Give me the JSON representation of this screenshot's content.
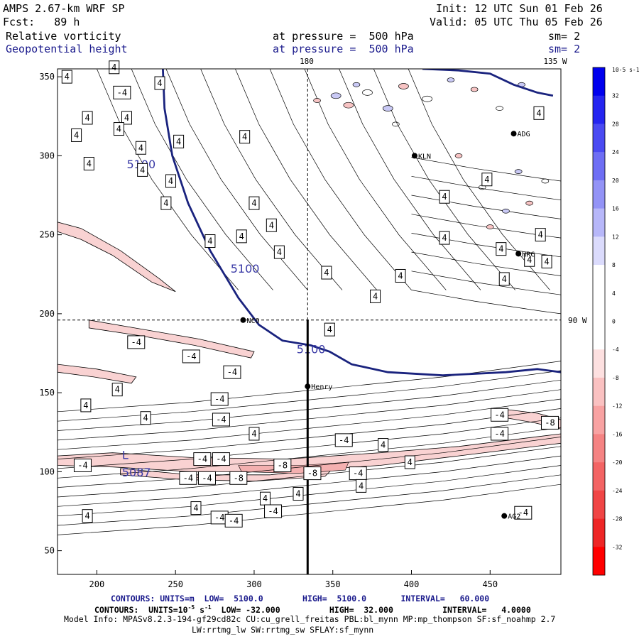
{
  "header": {
    "model": "AMPS 2.67-km WRF SP",
    "forecast_label": "Fcst:",
    "forecast_hours": "89 h",
    "init_label": "Init:",
    "init_time": "12 UTC Sun 01 Feb 26",
    "valid_label": "Valid:",
    "valid_time": "05 UTC Thu 05 Feb 26",
    "field1_name": "Relative vorticity",
    "field1_pressure": "at pressure =  500 hPa",
    "field1_smooth": "sm= 2",
    "field2_name": "Geopotential height",
    "field2_pressure": "at pressure =  500 hPa",
    "field2_smooth": "sm= 2"
  },
  "map_labels": {
    "top_lon_1": "180",
    "top_lon_2": "135 W",
    "right_lon": "90 W"
  },
  "stations": [
    {
      "name": "NCO",
      "x": 293,
      "y": 196
    },
    {
      "name": "Henry",
      "x": 334,
      "y": 154
    },
    {
      "name": "KLN",
      "x": 402,
      "y": 300
    },
    {
      "name": "ADG",
      "x": 465,
      "y": 314
    },
    {
      "name": "HRC",
      "x": 468,
      "y": 238
    },
    {
      "name": "AG2",
      "x": 459,
      "y": 72
    }
  ],
  "chart_data": {
    "type": "contour",
    "x_axis": {
      "range": [
        175,
        495
      ],
      "ticks": [
        200,
        250,
        300,
        350,
        400,
        450
      ]
    },
    "y_axis": {
      "range": [
        35,
        355
      ],
      "ticks": [
        50,
        100,
        150,
        200,
        250,
        300,
        350
      ]
    },
    "cross_section_x": 334,
    "reference_point": {
      "x": 334,
      "y": 196
    },
    "height_contours": [
      {
        "label": "5100",
        "points": [
          [
            242,
            355
          ],
          [
            243,
            330
          ],
          [
            248,
            300
          ],
          [
            258,
            270
          ],
          [
            272,
            240
          ],
          [
            290,
            210
          ],
          [
            303,
            193
          ],
          [
            318,
            183
          ],
          [
            336,
            180
          ],
          [
            348,
            176
          ],
          [
            362,
            168
          ],
          [
            385,
            163
          ],
          [
            420,
            161
          ],
          [
            460,
            163
          ],
          [
            480,
            165
          ],
          [
            495,
            163
          ]
        ]
      },
      {
        "label": "5100",
        "points": [
          [
            407,
            355
          ],
          [
            430,
            354
          ],
          [
            450,
            352
          ],
          [
            465,
            345
          ],
          [
            480,
            340
          ],
          [
            490,
            338
          ]
        ]
      }
    ],
    "height_labels": [
      {
        "text": "5100",
        "x": 219,
        "y": 292
      },
      {
        "text": "5100",
        "x": 285,
        "y": 226
      },
      {
        "text": "5100",
        "x": 327,
        "y": 175
      },
      {
        "text": "L",
        "x": 216,
        "y": 108
      },
      {
        "text": "5087",
        "x": 216,
        "y": 97
      }
    ],
    "vorticity_labels": [
      {
        "v": "4",
        "x": 181,
        "y": 350
      },
      {
        "v": "4",
        "x": 211,
        "y": 356
      },
      {
        "v": "-4",
        "x": 216,
        "y": 340
      },
      {
        "v": "4",
        "x": 240,
        "y": 346
      },
      {
        "v": "4",
        "x": 194,
        "y": 324
      },
      {
        "v": "4",
        "x": 219,
        "y": 324
      },
      {
        "v": "4",
        "x": 187,
        "y": 313
      },
      {
        "v": "4",
        "x": 214,
        "y": 317
      },
      {
        "v": "4",
        "x": 252,
        "y": 309
      },
      {
        "v": "4",
        "x": 228,
        "y": 305
      },
      {
        "v": "4",
        "x": 294,
        "y": 312
      },
      {
        "v": "4",
        "x": 229,
        "y": 291
      },
      {
        "v": "4",
        "x": 195,
        "y": 295
      },
      {
        "v": "4",
        "x": 247,
        "y": 284
      },
      {
        "v": "4",
        "x": 300,
        "y": 270
      },
      {
        "v": "4",
        "x": 311,
        "y": 256
      },
      {
        "v": "4",
        "x": 244,
        "y": 270
      },
      {
        "v": "4",
        "x": 272,
        "y": 246
      },
      {
        "v": "4",
        "x": 292,
        "y": 249
      },
      {
        "v": "4",
        "x": 316,
        "y": 239
      },
      {
        "v": "4",
        "x": 346,
        "y": 226
      },
      {
        "v": "4",
        "x": 377,
        "y": 211
      },
      {
        "v": "4",
        "x": 393,
        "y": 224
      },
      {
        "v": "4",
        "x": 421,
        "y": 248
      },
      {
        "v": "4",
        "x": 457,
        "y": 241
      },
      {
        "v": "4",
        "x": 482,
        "y": 250
      },
      {
        "v": "4",
        "x": 475,
        "y": 234
      },
      {
        "v": "4",
        "x": 459,
        "y": 222
      },
      {
        "v": "4",
        "x": 421,
        "y": 274
      },
      {
        "v": "4",
        "x": 448,
        "y": 285
      },
      {
        "v": "4",
        "x": 486,
        "y": 233
      },
      {
        "v": "4",
        "x": 481,
        "y": 327
      },
      {
        "v": "4",
        "x": 348,
        "y": 190
      },
      {
        "v": "-4",
        "x": 225,
        "y": 182
      },
      {
        "v": "-4",
        "x": 260,
        "y": 173
      },
      {
        "v": "-4",
        "x": 286,
        "y": 163
      },
      {
        "v": "4",
        "x": 213,
        "y": 152
      },
      {
        "v": "-4",
        "x": 278,
        "y": 146
      },
      {
        "v": "4",
        "x": 193,
        "y": 142
      },
      {
        "v": "4",
        "x": 231,
        "y": 134
      },
      {
        "v": "-4",
        "x": 279,
        "y": 133
      },
      {
        "v": "4",
        "x": 300,
        "y": 124
      },
      {
        "v": "-4",
        "x": 357,
        "y": 120
      },
      {
        "v": "-4",
        "x": 456,
        "y": 136
      },
      {
        "v": "-4",
        "x": 456,
        "y": 124
      },
      {
        "v": "4",
        "x": 382,
        "y": 117
      },
      {
        "v": "-8",
        "x": 488,
        "y": 131
      },
      {
        "v": "-4",
        "x": 191,
        "y": 104
      },
      {
        "v": "-4",
        "x": 267,
        "y": 108
      },
      {
        "v": "-4",
        "x": 279,
        "y": 108
      },
      {
        "v": "-8",
        "x": 318,
        "y": 104
      },
      {
        "v": "-8",
        "x": 290,
        "y": 96
      },
      {
        "v": "-8",
        "x": 337,
        "y": 99
      },
      {
        "v": "-4",
        "x": 366,
        "y": 99
      },
      {
        "v": "4",
        "x": 399,
        "y": 106
      },
      {
        "v": "4",
        "x": 328,
        "y": 86
      },
      {
        "v": "4",
        "x": 368,
        "y": 91
      },
      {
        "v": "-4",
        "x": 258,
        "y": 96
      },
      {
        "v": "-4",
        "x": 270,
        "y": 96
      },
      {
        "v": "4",
        "x": 307,
        "y": 83
      },
      {
        "v": "-4",
        "x": 312,
        "y": 75
      },
      {
        "v": "4",
        "x": 263,
        "y": 77
      },
      {
        "v": "-4",
        "x": 278,
        "y": 71
      },
      {
        "v": "-4",
        "x": 287,
        "y": 69
      },
      {
        "v": "4",
        "x": 194,
        "y": 72
      },
      {
        "v": "-4",
        "x": 471,
        "y": 74
      }
    ],
    "colorbar": {
      "unit": "10-5 s-1",
      "levels": [
        32,
        28,
        24,
        20,
        16,
        12,
        8,
        4,
        0,
        -4,
        -8,
        -12,
        -16,
        -20,
        -24,
        -28,
        -32
      ],
      "colors": [
        "#0000ee",
        "#2525f0",
        "#4a4af2",
        "#6e6ef4",
        "#9393f6",
        "#b7b7f9",
        "#dbdbfc",
        "#ffffff",
        "#ffffff",
        "#ffffff",
        "#fde0e0",
        "#fac1c1",
        "#f8a2a2",
        "#f58383",
        "#f36464",
        "#f04545",
        "#ee2626",
        "#ff0000"
      ]
    }
  },
  "footer": {
    "line1": "CONTOURS: UNITS=m  LOW=  5100.0        HIGH=  5100.0       INTERVAL=   60.000",
    "line2_a": "CONTOURS:  UNITS=10",
    "line2_exp1": "-5",
    "line2_b": " s",
    "line2_exp2": "-1",
    "line2_c": "  LOW= -32.000          HIGH=  32.000          INTERVAL=   4.0000",
    "line3": "Model Info: MPASv8.2.3-194-gf29cd82c CU:cu_grell_freitas PBL:bl_mynn MP:mp_thompson SF:sf_noahmp 2.7",
    "line4": "LW:rrtmg_lw SW:rrtmg_sw SFLAY:sf_mynn"
  }
}
